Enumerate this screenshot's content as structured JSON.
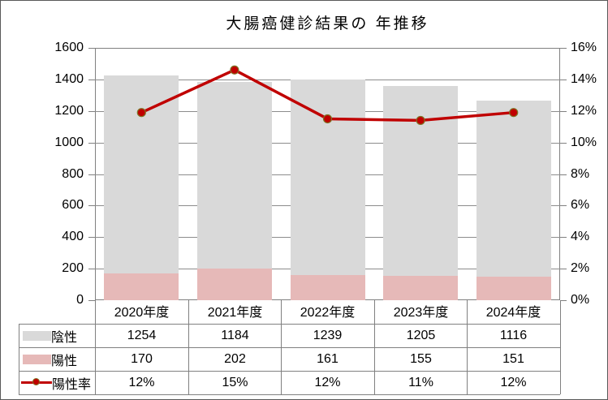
{
  "chart_data": {
    "type": "combo-stacked-bar-line",
    "title": "大腸癌健診結果の 年推移",
    "categories": [
      "2020年度",
      "2021年度",
      "2022年度",
      "2023年度",
      "2024年度"
    ],
    "series": [
      {
        "name": "陰性",
        "type": "bar",
        "stack_order": 2,
        "color": "#D9D9D9",
        "values": [
          1254,
          1184,
          1239,
          1205,
          1116
        ]
      },
      {
        "name": "陽性",
        "type": "bar",
        "stack_order": 1,
        "color": "#E6B9B8",
        "values": [
          170,
          202,
          161,
          155,
          151
        ]
      },
      {
        "name": "陽性率",
        "type": "line",
        "axis": "right",
        "color": "#C00000",
        "marker_border": "#7F7325",
        "values": [
          11.9,
          14.6,
          11.5,
          11.4,
          11.9
        ],
        "labels": [
          "12%",
          "15%",
          "12%",
          "11%",
          "12%"
        ]
      }
    ],
    "left_axis": {
      "min": 0,
      "max": 1600,
      "step": 200,
      "ticks": [
        "0",
        "200",
        "400",
        "600",
        "800",
        "1000",
        "1200",
        "1400",
        "1600"
      ]
    },
    "right_axis": {
      "min": 0,
      "max": 16,
      "step": 2,
      "ticks": [
        "0%",
        "2%",
        "4%",
        "6%",
        "8%",
        "10%",
        "12%",
        "14%",
        "16%"
      ]
    },
    "legend_position": "data-table-left",
    "grid": true,
    "colors": {
      "gridline": "#8C8C8C",
      "plot_border": "#808080",
      "table_border": "#808080",
      "chart_border": "#595959",
      "text": "#000000",
      "background": "#FFFFFF"
    }
  }
}
